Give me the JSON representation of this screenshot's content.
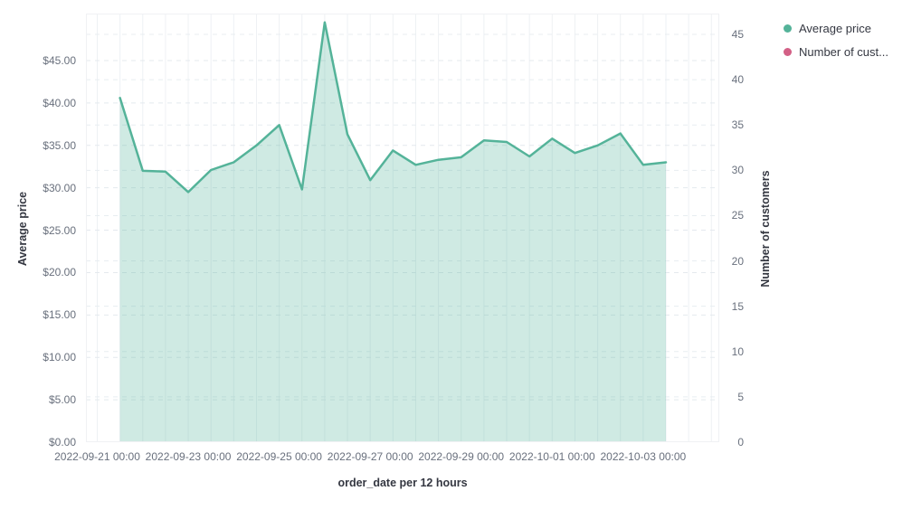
{
  "chart": {
    "legend": {
      "items": [
        {
          "label": "Average price",
          "color": "#54B399"
        },
        {
          "label": "Number of cust...",
          "color": "#D36086"
        }
      ]
    },
    "x_axis": {
      "title": "order_date per 12 hours",
      "labels": [
        "2022-09-21 00:00",
        "2022-09-23 00:00",
        "2022-09-25 00:00",
        "2022-09-27 00:00",
        "2022-09-29 00:00",
        "2022-10-01 00:00",
        "2022-10-03 00:00"
      ]
    },
    "y_axis_left": {
      "title": "Average price",
      "ticks": [
        "$0.00",
        "$5.00",
        "$10.00",
        "$15.00",
        "$20.00",
        "$25.00",
        "$30.00",
        "$35.00",
        "$40.00",
        "$45.00"
      ]
    },
    "y_axis_right": {
      "title": "Number of customers",
      "ticks": [
        "0",
        "5",
        "10",
        "15",
        "20",
        "25",
        "30",
        "35",
        "40",
        "45"
      ]
    }
  },
  "chart_data": {
    "type": "area",
    "title": "",
    "xlabel": "order_date per 12 hours",
    "ylabel_left": "Average price",
    "ylabel_right": "Number of customers",
    "ylim_left": [
      0,
      50.5
    ],
    "ylim_right": [
      0,
      47.3
    ],
    "grid": {
      "vertical": "solid per 12h bucket",
      "horizontal": "dashed, ticks of both axes"
    },
    "legend_position": "top-right",
    "x": [
      "2022-09-21 12:00",
      "2022-09-22 00:00",
      "2022-09-22 12:00",
      "2022-09-23 00:00",
      "2022-09-23 12:00",
      "2022-09-24 00:00",
      "2022-09-24 12:00",
      "2022-09-25 00:00",
      "2022-09-25 12:00",
      "2022-09-26 00:00",
      "2022-09-26 12:00",
      "2022-09-27 00:00",
      "2022-09-27 12:00",
      "2022-09-28 00:00",
      "2022-09-28 12:00",
      "2022-09-29 00:00",
      "2022-09-29 12:00",
      "2022-09-30 00:00",
      "2022-09-30 12:00",
      "2022-10-01 00:00",
      "2022-10-01 12:00",
      "2022-10-02 00:00",
      "2022-10-02 12:00",
      "2022-10-03 00:00",
      "2022-10-03 12:00"
    ],
    "series": [
      {
        "name": "Average price",
        "axis": "left",
        "color": "#54B399",
        "fill": "rgba(84,179,153,0.28)",
        "values": [
          40.6,
          32.0,
          31.9,
          29.5,
          32.1,
          33.0,
          35.0,
          37.4,
          29.8,
          49.5,
          36.3,
          30.9,
          34.4,
          32.7,
          33.3,
          33.6,
          35.6,
          35.4,
          33.7,
          35.8,
          34.1,
          35.0,
          36.4,
          32.7,
          33.0
        ]
      },
      {
        "name": "Number of cust...",
        "axis": "right",
        "color": "#D36086",
        "values": []
      }
    ]
  }
}
